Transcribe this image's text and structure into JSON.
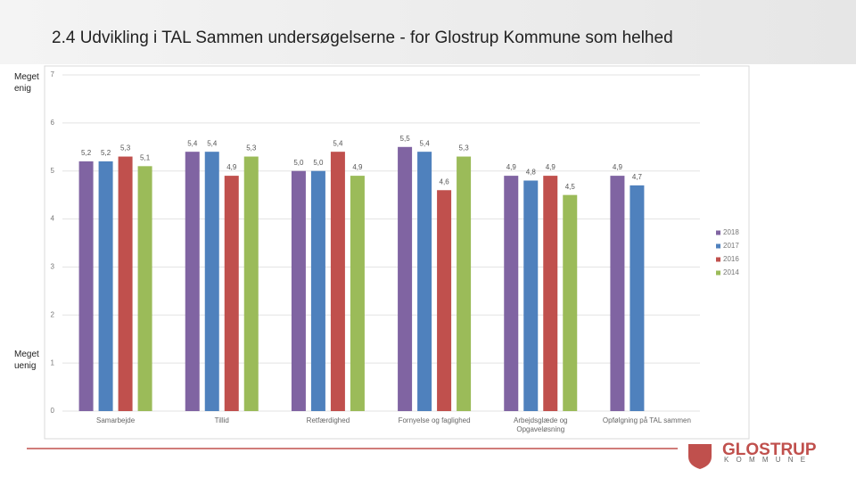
{
  "chart_data": {
    "type": "bar",
    "title": "2.4 Udvikling i TAL Sammen undersøgelserne - for Glostrup Kommune som helhed",
    "categories": [
      "Samarbejde",
      "Tillid",
      "Retfærdighed",
      "Fornyelse og faglighed",
      "Arbejdsglæde og\nOpgaveløsning",
      "Opfølgning på TAL sammen"
    ],
    "series": [
      {
        "name": "2018",
        "color": "#8064a2",
        "values": [
          5.2,
          5.4,
          5.0,
          5.5,
          4.9,
          4.9
        ],
        "value_labels": [
          "5,2",
          "5,4",
          "5,0",
          "5,5",
          "4,9",
          "4,9"
        ]
      },
      {
        "name": "2017",
        "color": "#4f81bd",
        "values": [
          5.2,
          5.4,
          5.0,
          5.4,
          4.8,
          4.7
        ],
        "value_labels": [
          "5,2",
          "5,4",
          "5,0",
          "5,4",
          "4,8",
          "4,7"
        ]
      },
      {
        "name": "2016",
        "color": "#c0504d",
        "values": [
          5.3,
          4.9,
          5.4,
          4.6,
          4.9,
          null
        ],
        "value_labels": [
          "5,3",
          "4,9",
          "5,4",
          "4,6",
          "4,9",
          null
        ]
      },
      {
        "name": "2014",
        "color": "#9bbb59",
        "values": [
          5.1,
          5.3,
          4.9,
          5.3,
          4.5,
          null
        ],
        "value_labels": [
          "5,1",
          "5,3",
          "4,9",
          "5,3",
          "4,5",
          null
        ]
      }
    ],
    "ylim": [
      0,
      7
    ],
    "yticks": [
      0,
      1,
      2,
      3,
      4,
      5,
      6,
      7
    ],
    "grid": true,
    "legend": "right"
  },
  "slide": {
    "top_label": "Meget enig",
    "bottom_label": "Meget uenig",
    "logo_name": "GLOSTRUP",
    "logo_sub": "K O M M U N E"
  }
}
